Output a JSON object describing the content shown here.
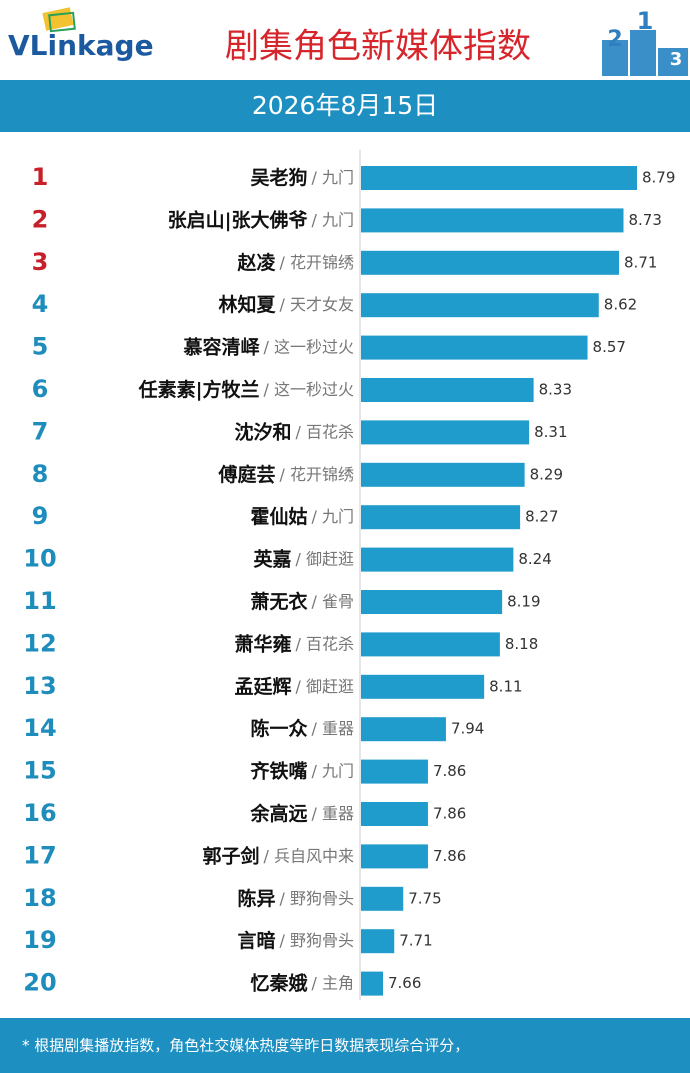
{
  "logo": "VLinkage",
  "podium": [
    "2",
    "1",
    "3"
  ],
  "footnote": "* 根据剧集播放指数，角色社交媒体热度等昨日数据表现综合评分，",
  "chart_data": {
    "type": "bar",
    "title": "剧集角色新媒体指数",
    "subtitle": "2026年8月15日",
    "color": "#1f9ccb",
    "top_rank_color": "#c8202a",
    "rank_color": "#1f8dbb",
    "ranks": [
      1,
      2,
      3,
      4,
      5,
      6,
      7,
      8,
      9,
      10,
      11,
      12,
      13,
      14,
      15,
      16,
      17,
      18,
      19,
      20
    ],
    "categories": [
      "吴老狗",
      "张启山|张大佛爷",
      "赵凌",
      "林知夏",
      "慕容清峄",
      "任素素|方牧兰",
      "沈汐和",
      "傅庭芸",
      "霍仙姑",
      "英嘉",
      "萧无衣",
      "萧华雍",
      "孟廷辉",
      "陈一众",
      "齐铁嘴",
      "余高远",
      "郭子剑",
      "陈异",
      "言暗",
      "忆秦娥"
    ],
    "dramas": [
      "/ 九门",
      "/ 九门",
      "/ 花开锦绣",
      "/ 天才女友",
      "/ 这一秒过火",
      "/ 这一秒过火",
      "/ 百花杀",
      "/ 花开锦绣",
      "/ 九门",
      "/ 御赶逛",
      "/ 雀骨",
      "/ 百花杀",
      "/ 御赶逛",
      "/ 重器",
      "/ 九门",
      "/ 重器",
      "/ 兵自风中来",
      "/ 野狗骨头",
      "/ 野狗骨头",
      "/ 主角"
    ],
    "values": [
      8.79,
      8.73,
      8.71,
      8.62,
      8.57,
      8.33,
      8.31,
      8.29,
      8.27,
      8.24,
      8.19,
      8.18,
      8.11,
      7.94,
      7.86,
      7.86,
      7.86,
      7.75,
      7.71,
      7.66
    ]
  }
}
